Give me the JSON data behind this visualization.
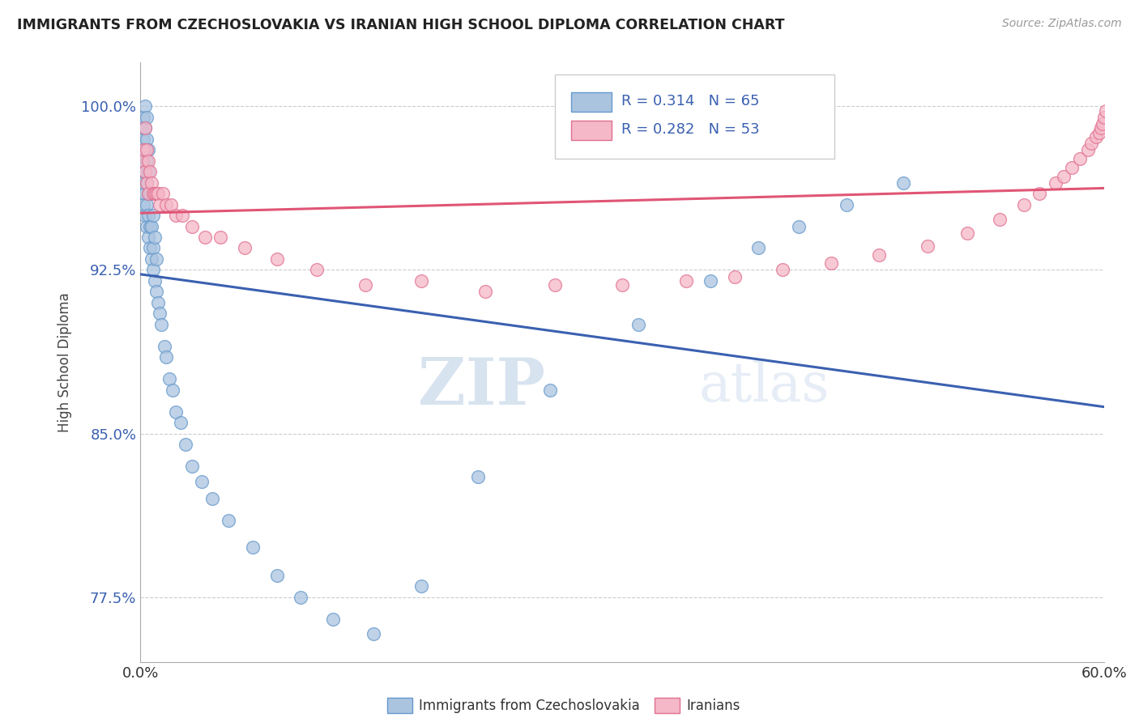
{
  "title": "IMMIGRANTS FROM CZECHOSLOVAKIA VS IRANIAN HIGH SCHOOL DIPLOMA CORRELATION CHART",
  "source_text": "Source: ZipAtlas.com",
  "ylabel": "High School Diploma",
  "xlim": [
    0.0,
    0.6
  ],
  "ylim": [
    0.745,
    1.02
  ],
  "yticks": [
    0.775,
    0.85,
    0.925,
    1.0
  ],
  "ytick_labels": [
    "77.5%",
    "85.0%",
    "92.5%",
    "100.0%"
  ],
  "xticks": [
    0.0,
    0.6
  ],
  "xtick_labels": [
    "0.0%",
    "60.0%"
  ],
  "blue_scatter_color": "#aac4e0",
  "blue_edge_color": "#6699cc",
  "pink_scatter_color": "#f5b8c8",
  "pink_edge_color": "#e07090",
  "blue_line_color": "#3a60b0",
  "pink_line_color": "#e05575",
  "marker_size": 130,
  "watermark": "ZIPatlas",
  "watermark_color": "#c8d8ec",
  "footer_label_1": "Immigrants from Czechoslovakia",
  "footer_label_2": "Iranians",
  "blue_x": [
    0.001,
    0.001,
    0.001,
    0.002,
    0.002,
    0.002,
    0.002,
    0.002,
    0.003,
    0.003,
    0.003,
    0.003,
    0.003,
    0.003,
    0.004,
    0.004,
    0.004,
    0.004,
    0.004,
    0.004,
    0.005,
    0.005,
    0.005,
    0.005,
    0.005,
    0.006,
    0.006,
    0.006,
    0.007,
    0.007,
    0.008,
    0.008,
    0.008,
    0.009,
    0.009,
    0.01,
    0.01,
    0.011,
    0.012,
    0.013,
    0.015,
    0.016,
    0.018,
    0.02,
    0.022,
    0.025,
    0.028,
    0.032,
    0.038,
    0.045,
    0.055,
    0.07,
    0.085,
    0.1,
    0.12,
    0.145,
    0.175,
    0.21,
    0.255,
    0.31,
    0.355,
    0.385,
    0.41,
    0.44,
    0.475
  ],
  "blue_y": [
    0.97,
    0.98,
    0.99,
    0.955,
    0.965,
    0.975,
    0.985,
    0.995,
    0.95,
    0.96,
    0.97,
    0.98,
    0.99,
    1.0,
    0.945,
    0.955,
    0.965,
    0.975,
    0.985,
    0.995,
    0.94,
    0.95,
    0.96,
    0.97,
    0.98,
    0.935,
    0.945,
    0.96,
    0.93,
    0.945,
    0.925,
    0.935,
    0.95,
    0.92,
    0.94,
    0.915,
    0.93,
    0.91,
    0.905,
    0.9,
    0.89,
    0.885,
    0.875,
    0.87,
    0.86,
    0.855,
    0.845,
    0.835,
    0.828,
    0.82,
    0.81,
    0.798,
    0.785,
    0.775,
    0.765,
    0.758,
    0.78,
    0.83,
    0.87,
    0.9,
    0.92,
    0.935,
    0.945,
    0.955,
    0.965
  ],
  "pink_x": [
    0.001,
    0.002,
    0.003,
    0.003,
    0.004,
    0.004,
    0.005,
    0.005,
    0.006,
    0.007,
    0.008,
    0.009,
    0.01,
    0.011,
    0.012,
    0.014,
    0.016,
    0.019,
    0.022,
    0.026,
    0.032,
    0.04,
    0.05,
    0.065,
    0.085,
    0.11,
    0.14,
    0.175,
    0.215,
    0.258,
    0.3,
    0.34,
    0.37,
    0.4,
    0.43,
    0.46,
    0.49,
    0.515,
    0.535,
    0.55,
    0.56,
    0.57,
    0.575,
    0.58,
    0.585,
    0.59,
    0.592,
    0.595,
    0.597,
    0.598,
    0.599,
    0.6,
    0.601
  ],
  "pink_y": [
    0.975,
    0.98,
    0.97,
    0.99,
    0.965,
    0.98,
    0.975,
    0.96,
    0.97,
    0.965,
    0.96,
    0.96,
    0.96,
    0.96,
    0.955,
    0.96,
    0.955,
    0.955,
    0.95,
    0.95,
    0.945,
    0.94,
    0.94,
    0.935,
    0.93,
    0.925,
    0.918,
    0.92,
    0.915,
    0.918,
    0.918,
    0.92,
    0.922,
    0.925,
    0.928,
    0.932,
    0.936,
    0.942,
    0.948,
    0.955,
    0.96,
    0.965,
    0.968,
    0.972,
    0.976,
    0.98,
    0.983,
    0.986,
    0.988,
    0.99,
    0.992,
    0.995,
    0.998
  ]
}
